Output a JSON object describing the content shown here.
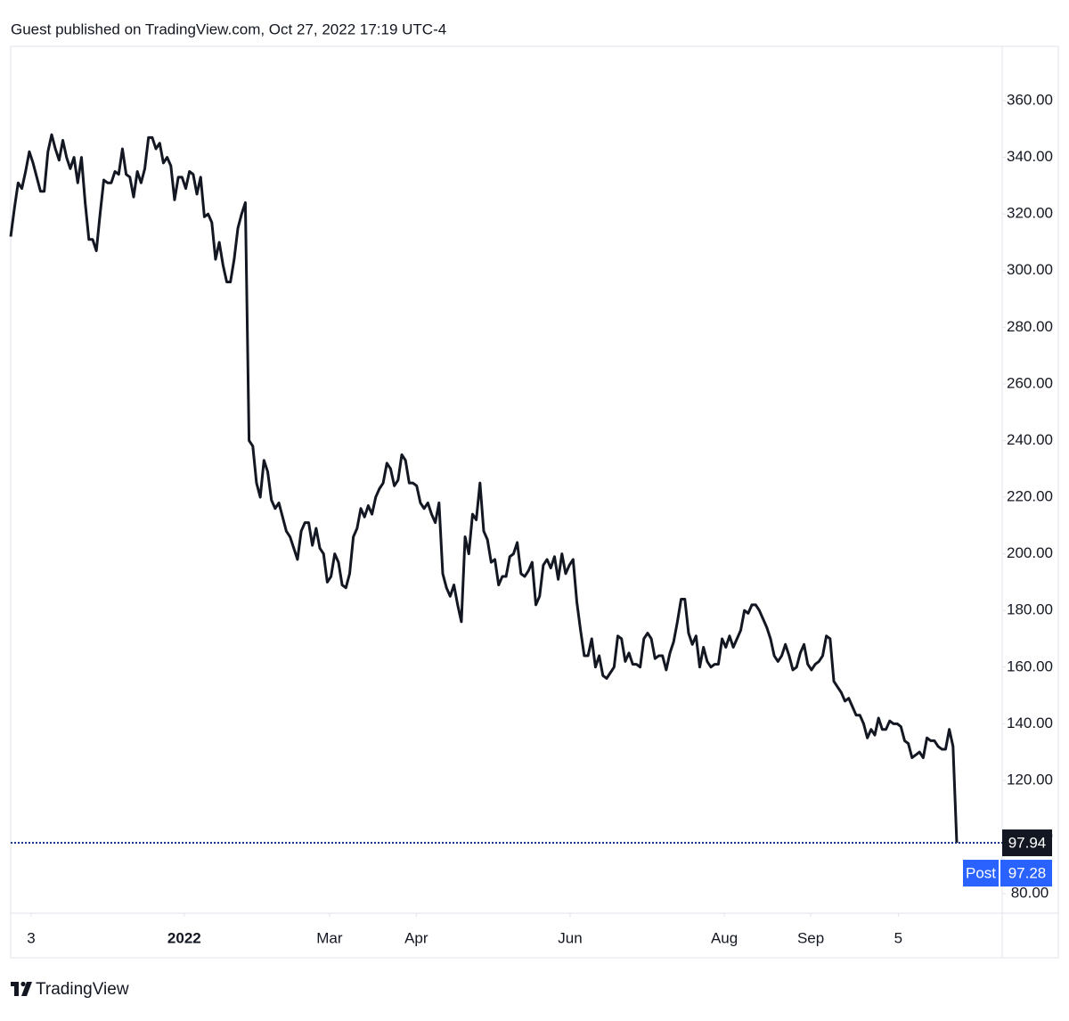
{
  "chart_data": {
    "type": "line",
    "title": "Guest published on TradingView.com, Oct 27, 2022 17:19 UTC-4",
    "brand": "TradingView",
    "color": "#131722",
    "x": [
      0,
      1,
      2,
      3,
      4,
      5,
      6,
      7,
      8,
      9,
      10,
      11,
      12,
      13,
      14,
      15,
      16,
      17,
      18,
      19,
      20,
      21,
      22,
      23,
      24,
      25,
      26,
      27,
      28,
      29,
      30,
      31,
      32,
      33,
      34,
      35,
      36,
      37,
      38,
      39,
      40,
      41,
      42,
      43,
      44,
      45,
      46,
      47,
      48,
      49,
      50,
      51,
      52,
      53,
      54,
      55,
      56,
      57,
      58,
      59,
      60,
      61,
      62,
      63,
      64,
      65,
      66,
      67,
      68,
      69,
      70,
      71,
      72,
      73,
      74,
      75,
      76,
      77,
      78,
      79,
      80,
      81,
      82,
      83,
      84,
      85,
      86,
      87,
      88,
      89,
      90,
      91,
      92,
      93,
      94,
      95,
      96,
      97,
      98,
      99,
      100,
      101,
      102,
      103,
      104,
      105,
      106,
      107,
      108,
      109,
      110,
      111,
      112,
      113,
      114,
      115,
      116,
      117,
      118,
      119,
      120,
      121,
      122,
      123,
      124,
      125,
      126,
      127,
      128,
      129,
      130,
      131,
      132,
      133,
      134,
      135,
      136,
      137,
      138,
      139,
      140,
      141,
      142,
      143,
      144,
      145,
      146,
      147,
      148,
      149,
      150,
      151,
      152,
      153,
      154,
      155,
      156,
      157,
      158,
      159,
      160,
      161,
      162,
      163,
      164,
      165,
      166,
      167,
      168,
      169,
      170,
      171,
      172,
      173,
      174,
      175,
      176,
      177,
      178,
      179,
      180,
      181,
      182,
      183,
      184,
      185,
      186,
      187,
      188,
      189,
      190,
      191,
      192,
      193,
      194,
      195,
      196,
      197,
      198,
      199,
      200,
      201,
      202,
      203,
      204,
      205,
      206,
      207,
      208,
      209,
      210,
      211,
      212,
      213,
      214,
      215,
      216,
      217,
      218,
      219,
      220,
      221,
      222,
      223,
      224,
      225,
      226,
      227,
      228,
      229,
      230,
      231,
      232,
      233,
      234,
      235,
      236,
      237,
      238,
      239,
      240,
      241,
      242,
      243,
      244,
      245,
      246,
      247,
      248,
      249,
      250,
      251,
      252,
      253,
      254
    ],
    "values": [
      312,
      322,
      331,
      329,
      335,
      342,
      338,
      333,
      328,
      328,
      342,
      348,
      343,
      339,
      346,
      340,
      336,
      340,
      331,
      340,
      324,
      311,
      311,
      307,
      320,
      332,
      331,
      331,
      335,
      334,
      343,
      334,
      333,
      326,
      335,
      331,
      336,
      347,
      347,
      343,
      345,
      338,
      340,
      337,
      325,
      333,
      333,
      329,
      335,
      334,
      327,
      333,
      319,
      320,
      317,
      304,
      310,
      302,
      296,
      296,
      304,
      315,
      320,
      324,
      240,
      238,
      225,
      220,
      233,
      229,
      219,
      216,
      218,
      213,
      208,
      206,
      202,
      198,
      208,
      211,
      211,
      203,
      209,
      202,
      200,
      190,
      192,
      200,
      197,
      189,
      188,
      193,
      206,
      209,
      216,
      213,
      217,
      214,
      220,
      223,
      225,
      232,
      230,
      224,
      226,
      235,
      233,
      225,
      225,
      224,
      218,
      216,
      218,
      214,
      211,
      218,
      193,
      188,
      185,
      189,
      182,
      176,
      206,
      200,
      214,
      212,
      225,
      208,
      205,
      197,
      198,
      189,
      192,
      192,
      199,
      200,
      204,
      193,
      192,
      194,
      197,
      182,
      185,
      196,
      198,
      195,
      199,
      191,
      200,
      193,
      196,
      198,
      183,
      173,
      164,
      164,
      170,
      160,
      164,
      157,
      156,
      158,
      160,
      171,
      170,
      162,
      165,
      161,
      161,
      160,
      170,
      172,
      170,
      163,
      164,
      164,
      159,
      165,
      169,
      176,
      184,
      184,
      172,
      168,
      171,
      160,
      167,
      162,
      160,
      161,
      161,
      170,
      167,
      171,
      167,
      170,
      173,
      180,
      179,
      182,
      182,
      180,
      177,
      174,
      170,
      164,
      162,
      164,
      168,
      164,
      159,
      160,
      165,
      168,
      161,
      159,
      161,
      162,
      164,
      171,
      170,
      155,
      153,
      151,
      148,
      149,
      146,
      143,
      143,
      140,
      135,
      138,
      136,
      142,
      138,
      138,
      141,
      140,
      140,
      139,
      134,
      133,
      128,
      129,
      130,
      128,
      135,
      134,
      134,
      132,
      131,
      131,
      138,
      132,
      97.94
    ],
    "post_market": {
      "label": "Post",
      "value": 97.28
    },
    "xlim": [
      0,
      266.2
    ],
    "xticks": [
      {
        "value": 5.5,
        "label": "3"
      },
      {
        "value": 46.6,
        "label": "2022"
      },
      {
        "value": 85.6,
        "label": "Mar"
      },
      {
        "value": 108.9,
        "label": "Apr"
      },
      {
        "value": 150.2,
        "label": "Jun"
      },
      {
        "value": 191.6,
        "label": "Aug"
      },
      {
        "value": 214.8,
        "label": "Sep"
      },
      {
        "value": 238.3,
        "label": "5"
      }
    ],
    "ylim": [
      73.1,
      379.2
    ],
    "yticks": [
      {
        "value": 80,
        "label": "80.00"
      },
      {
        "value": 100,
        "label": "100.00"
      },
      {
        "value": 120,
        "label": "120.00"
      },
      {
        "value": 140,
        "label": "140.00"
      },
      {
        "value": 160,
        "label": "160.00"
      },
      {
        "value": 180,
        "label": "180.00"
      },
      {
        "value": 200,
        "label": "200.00"
      },
      {
        "value": 220,
        "label": "220.00"
      },
      {
        "value": 240,
        "label": "240.00"
      },
      {
        "value": 260,
        "label": "260.00"
      },
      {
        "value": 280,
        "label": "280.00"
      },
      {
        "value": 300,
        "label": "300.00"
      },
      {
        "value": 320,
        "label": "320.00"
      },
      {
        "value": 340,
        "label": "340.00"
      },
      {
        "value": 360,
        "label": "360.00"
      }
    ],
    "grid": false
  }
}
